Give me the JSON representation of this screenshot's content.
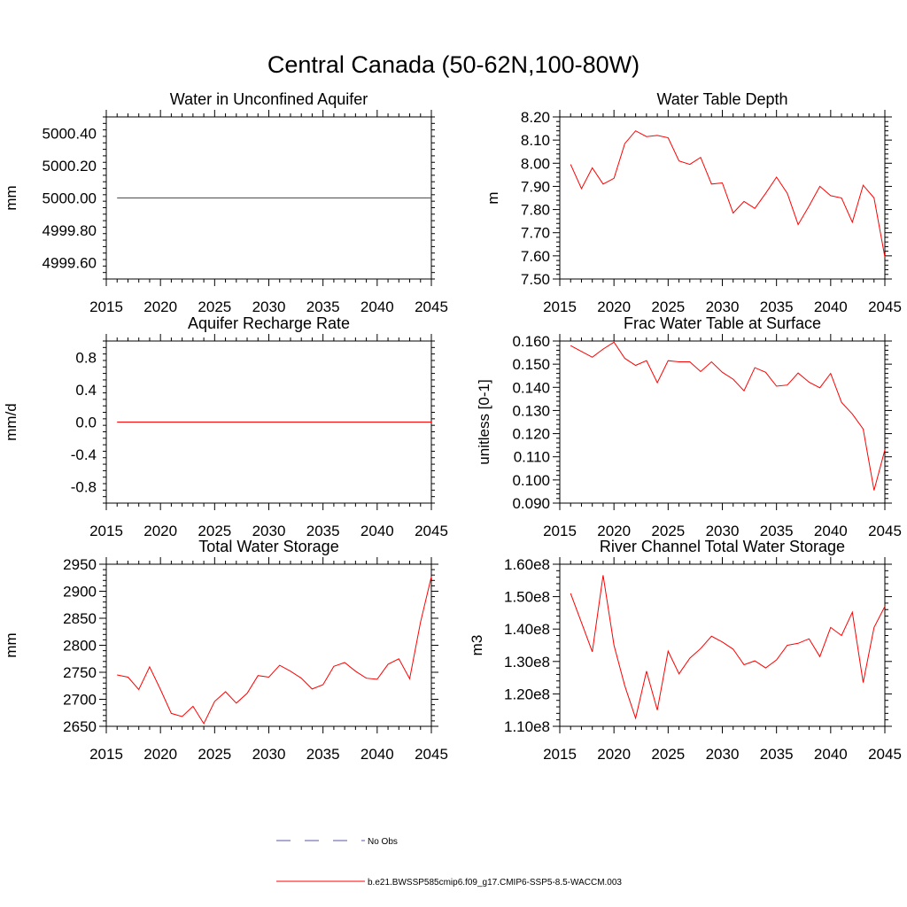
{
  "figure": {
    "title": "Central Canada (50-62N,100-80W)"
  },
  "legend": {
    "entries": [
      {
        "label": "No Obs",
        "style": "dashed",
        "color": "#5555aa"
      },
      {
        "label": "b.e21.BWSSP585cmip6.f09_g17.CMIP6-SSP5-8.5-WACCM.003",
        "style": "solid",
        "color": "#ff0000"
      }
    ]
  },
  "chart_data": [
    {
      "type": "line",
      "title": "Water in Unconfined Aquifer",
      "ylabel": "mm",
      "xlim": [
        2015,
        2045
      ],
      "ylim": [
        4999.5,
        5000.5
      ],
      "x_ticks": [
        2015,
        2020,
        2025,
        2030,
        2035,
        2040,
        2045
      ],
      "y_ticks": [
        4999.6,
        4999.8,
        5000.0,
        5000.2,
        5000.4
      ],
      "y_tick_labels": [
        "4999.60",
        "4999.80",
        "5000.00",
        "5000.20",
        "5000.40"
      ],
      "x": [
        2016,
        2017,
        2018,
        2019,
        2020,
        2021,
        2022,
        2023,
        2024,
        2025,
        2026,
        2027,
        2028,
        2029,
        2030,
        2031,
        2032,
        2033,
        2034,
        2035,
        2036,
        2037,
        2038,
        2039,
        2040,
        2041,
        2042,
        2043,
        2044,
        2045
      ],
      "series": [
        {
          "color": "#ff0000",
          "values": [
            5000,
            5000,
            5000,
            5000,
            5000,
            5000,
            5000,
            5000,
            5000,
            5000,
            5000,
            5000,
            5000,
            5000,
            5000,
            5000,
            5000,
            5000,
            5000,
            5000,
            5000,
            5000,
            5000,
            5000,
            5000,
            5000,
            5000,
            5000,
            5000,
            5000
          ]
        }
      ]
    },
    {
      "type": "line",
      "title": "Water Table Depth",
      "ylabel": "m",
      "xlim": [
        2015,
        2045
      ],
      "ylim": [
        7.5,
        8.2
      ],
      "x_ticks": [
        2015,
        2020,
        2025,
        2030,
        2035,
        2040,
        2045
      ],
      "y_ticks": [
        7.5,
        7.6,
        7.7,
        7.8,
        7.9,
        8.0,
        8.1,
        8.2
      ],
      "y_tick_labels": [
        "7.50",
        "7.60",
        "7.70",
        "7.80",
        "7.90",
        "8.00",
        "8.10",
        "8.20"
      ],
      "x": [
        2016,
        2017,
        2018,
        2019,
        2020,
        2021,
        2022,
        2023,
        2024,
        2025,
        2026,
        2027,
        2028,
        2029,
        2030,
        2031,
        2032,
        2033,
        2034,
        2035,
        2036,
        2037,
        2038,
        2039,
        2040,
        2041,
        2042,
        2043,
        2044,
        2045
      ],
      "series": [
        {
          "color": "#ff0000",
          "values": [
            7.995,
            7.89,
            7.98,
            7.91,
            7.935,
            8.085,
            8.14,
            8.115,
            8.12,
            8.11,
            8.01,
            7.995,
            8.025,
            7.91,
            7.915,
            7.785,
            7.835,
            7.805,
            7.87,
            7.94,
            7.87,
            7.735,
            7.815,
            7.9,
            7.86,
            7.85,
            7.745,
            7.905,
            7.85,
            7.595
          ]
        }
      ]
    },
    {
      "type": "line",
      "title": "Aquifer Recharge Rate",
      "ylabel": "mm/d",
      "xlim": [
        2015,
        2045
      ],
      "ylim": [
        -1.0,
        1.0
      ],
      "x_ticks": [
        2015,
        2020,
        2025,
        2030,
        2035,
        2040,
        2045
      ],
      "y_ticks": [
        -0.8,
        -0.4,
        0.0,
        0.4,
        0.8
      ],
      "y_tick_labels": [
        "-0.8",
        "-0.4",
        "0.0",
        "0.4",
        "0.8"
      ],
      "x": [
        2016,
        2017,
        2018,
        2019,
        2020,
        2021,
        2022,
        2023,
        2024,
        2025,
        2026,
        2027,
        2028,
        2029,
        2030,
        2031,
        2032,
        2033,
        2034,
        2035,
        2036,
        2037,
        2038,
        2039,
        2040,
        2041,
        2042,
        2043,
        2044,
        2045
      ],
      "series": [
        {
          "color": "#ff0000",
          "values": [
            0,
            0,
            0,
            0,
            0,
            0,
            0,
            0,
            0,
            0,
            0,
            0,
            0,
            0,
            0,
            0,
            0,
            0,
            0,
            0,
            0,
            0,
            0,
            0,
            0,
            0,
            0,
            0,
            0,
            0
          ]
        }
      ]
    },
    {
      "type": "line",
      "title": "Frac Water Table at Surface",
      "ylabel": "unitless [0-1]",
      "xlim": [
        2015,
        2045
      ],
      "ylim": [
        0.09,
        0.16
      ],
      "x_ticks": [
        2015,
        2020,
        2025,
        2030,
        2035,
        2040,
        2045
      ],
      "y_ticks": [
        0.09,
        0.1,
        0.11,
        0.12,
        0.13,
        0.14,
        0.15,
        0.16
      ],
      "y_tick_labels": [
        "0.090",
        "0.100",
        "0.110",
        "0.120",
        "0.130",
        "0.140",
        "0.150",
        "0.160"
      ],
      "x": [
        2016,
        2017,
        2018,
        2019,
        2020,
        2021,
        2022,
        2023,
        2024,
        2025,
        2026,
        2027,
        2028,
        2029,
        2030,
        2031,
        2032,
        2033,
        2034,
        2035,
        2036,
        2037,
        2038,
        2039,
        2040,
        2041,
        2042,
        2043,
        2044,
        2045
      ],
      "series": [
        {
          "color": "#ff0000",
          "values": [
            0.158,
            0.1555,
            0.153,
            0.1565,
            0.1595,
            0.1525,
            0.1495,
            0.1515,
            0.142,
            0.1515,
            0.151,
            0.151,
            0.1468,
            0.151,
            0.1465,
            0.1435,
            0.1385,
            0.1485,
            0.1465,
            0.1405,
            0.141,
            0.1462,
            0.1422,
            0.1398,
            0.146,
            0.1335,
            0.1285,
            0.122,
            0.0955,
            0.113
          ]
        }
      ]
    },
    {
      "type": "line",
      "title": "Total Water Storage",
      "ylabel": "mm",
      "xlim": [
        2015,
        2045
      ],
      "ylim": [
        2650,
        2950
      ],
      "x_ticks": [
        2015,
        2020,
        2025,
        2030,
        2035,
        2040,
        2045
      ],
      "y_ticks": [
        2650,
        2700,
        2750,
        2800,
        2850,
        2900,
        2950
      ],
      "y_tick_labels": [
        "2650",
        "2700",
        "2750",
        "2800",
        "2850",
        "2900",
        "2950"
      ],
      "x": [
        2016,
        2017,
        2018,
        2019,
        2020,
        2021,
        2022,
        2023,
        2024,
        2025,
        2026,
        2027,
        2028,
        2029,
        2030,
        2031,
        2032,
        2033,
        2034,
        2035,
        2036,
        2037,
        2038,
        2039,
        2040,
        2041,
        2042,
        2043,
        2044,
        2045
      ],
      "series": [
        {
          "color": "#ff0000",
          "values": [
            2745,
            2741,
            2718,
            2760,
            2718,
            2674,
            2668,
            2687,
            2655,
            2696,
            2714,
            2693,
            2711,
            2744,
            2741,
            2763,
            2752,
            2739,
            2719,
            2727,
            2761,
            2768,
            2752,
            2739,
            2737,
            2765,
            2775,
            2738,
            2843,
            2927
          ]
        }
      ]
    },
    {
      "type": "line",
      "title": "River Channel Total Water Storage",
      "ylabel": "m3",
      "xlim": [
        2015,
        2045
      ],
      "ylim": [
        110000000,
        160000000
      ],
      "x_ticks": [
        2015,
        2020,
        2025,
        2030,
        2035,
        2040,
        2045
      ],
      "y_ticks": [
        110000000,
        120000000,
        130000000,
        140000000,
        150000000,
        160000000
      ],
      "y_tick_labels": [
        "1.10e8",
        "1.20e8",
        "1.30e8",
        "1.40e8",
        "1.50e8",
        "1.60e8"
      ],
      "x": [
        2016,
        2017,
        2018,
        2019,
        2020,
        2021,
        2022,
        2023,
        2024,
        2025,
        2026,
        2027,
        2028,
        2029,
        2030,
        2031,
        2032,
        2033,
        2034,
        2035,
        2036,
        2037,
        2038,
        2039,
        2040,
        2041,
        2042,
        2043,
        2044,
        2045
      ],
      "series": [
        {
          "color": "#ff0000",
          "values": [
            151000000,
            142000000,
            133000000,
            156600000,
            135000000,
            122500000,
            112500000,
            127000000,
            115000000,
            133200000,
            126200000,
            131000000,
            134000000,
            137800000,
            136000000,
            133800000,
            129000000,
            130200000,
            128000000,
            130500000,
            135000000,
            135600000,
            137000000,
            131500000,
            140500000,
            138000000,
            145200000,
            123500000,
            140500000,
            147000000
          ]
        }
      ]
    }
  ]
}
